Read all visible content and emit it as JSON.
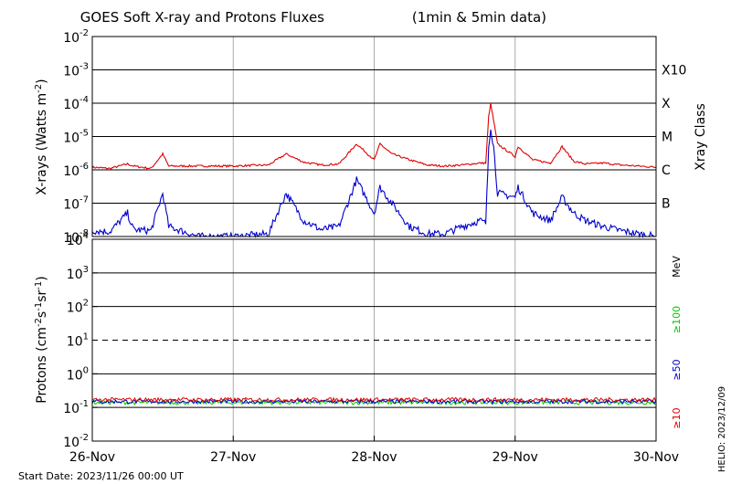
{
  "chart_data": [
    {
      "type": "line",
      "title": "GOES Soft X-ray and Protons Fluxes",
      "subtitle": "(1min & 5min data)",
      "ylabel": "X-rays (Watts m^-2)",
      "yscale": "log",
      "ylim": [
        1e-08,
        0.01
      ],
      "y_ticks": [
        "10^-8",
        "10^-7",
        "10^-6",
        "10^-5",
        "10^-4",
        "10^-3",
        "10^-2"
      ],
      "right_axis_title": "Xray Class",
      "classes": [
        {
          "label": "B",
          "value": 1e-07
        },
        {
          "label": "C",
          "value": 1e-06
        },
        {
          "label": "M",
          "value": 1e-05
        },
        {
          "label": "X",
          "value": 0.0001
        },
        {
          "label": "X10",
          "value": 0.001
        }
      ],
      "xlim": [
        "2023-11-26 00:00",
        "2023-11-30 00:00"
      ],
      "series": [
        {
          "color": "#dd0000",
          "points": [
            [
              "2023-11-26 00:00",
              1.2e-06
            ],
            [
              "2023-11-26 03:00",
              1.1e-06
            ],
            [
              "2023-11-26 06:00",
              1.5e-06
            ],
            [
              "2023-11-26 07:00",
              1.3e-06
            ],
            [
              "2023-11-26 10:00",
              1.1e-06
            ],
            [
              "2023-11-26 12:00",
              3e-06
            ],
            [
              "2023-11-26 13:00",
              1.3e-06
            ],
            [
              "2023-11-26 18:00",
              1.3e-06
            ],
            [
              "2023-11-27 00:00",
              1.3e-06
            ],
            [
              "2023-11-27 06:00",
              1.4e-06
            ],
            [
              "2023-11-27 09:00",
              3e-06
            ],
            [
              "2023-11-27 12:00",
              1.7e-06
            ],
            [
              "2023-11-27 15:00",
              1.4e-06
            ],
            [
              "2023-11-27 18:00",
              1.5e-06
            ],
            [
              "2023-11-27 21:00",
              6e-06
            ],
            [
              "2023-11-28 00:00",
              2e-06
            ],
            [
              "2023-11-28 01:00",
              6e-06
            ],
            [
              "2023-11-28 03:00",
              3e-06
            ],
            [
              "2023-11-28 06:00",
              2e-06
            ],
            [
              "2023-11-28 09:00",
              1.4e-06
            ],
            [
              "2023-11-28 12:00",
              1.3e-06
            ],
            [
              "2023-11-28 15:00",
              1.4e-06
            ],
            [
              "2023-11-28 18:00",
              1.6e-06
            ],
            [
              "2023-11-28 19:00",
              1.6e-06
            ],
            [
              "2023-11-28 19:30",
              4e-05
            ],
            [
              "2023-11-28 19:50",
              9.8e-05
            ],
            [
              "2023-11-28 20:20",
              3e-05
            ],
            [
              "2023-11-28 21:00",
              6e-06
            ],
            [
              "2023-11-29 00:00",
              2.5e-06
            ],
            [
              "2023-11-29 00:30",
              5e-06
            ],
            [
              "2023-11-29 03:00",
              2e-06
            ],
            [
              "2023-11-29 06:00",
              1.6e-06
            ],
            [
              "2023-11-29 08:00",
              5e-06
            ],
            [
              "2023-11-29 10:00",
              1.8e-06
            ],
            [
              "2023-11-29 12:00",
              1.5e-06
            ],
            [
              "2023-11-29 15:00",
              1.6e-06
            ],
            [
              "2023-11-29 18:00",
              1.4e-06
            ],
            [
              "2023-11-29 21:00",
              1.3e-06
            ],
            [
              "2023-11-30 00:00",
              1.2e-06
            ]
          ]
        },
        {
          "color": "#0000cc",
          "points": [
            [
              "2023-11-26 00:00",
              1.5e-08
            ],
            [
              "2023-11-26 03:00",
              1.4e-08
            ],
            [
              "2023-11-26 06:00",
              5e-08
            ],
            [
              "2023-11-26 07:00",
              1.6e-08
            ],
            [
              "2023-11-26 10:00",
              1.5e-08
            ],
            [
              "2023-11-26 12:00",
              2e-07
            ],
            [
              "2023-11-26 13:00",
              2e-08
            ],
            [
              "2023-11-26 18:00",
              1e-08
            ],
            [
              "2023-11-27 00:00",
              1e-08
            ],
            [
              "2023-11-27 06:00",
              1.2e-08
            ],
            [
              "2023-11-27 09:00",
              2e-07
            ],
            [
              "2023-11-27 12:00",
              3e-08
            ],
            [
              "2023-11-27 15:00",
              1.6e-08
            ],
            [
              "2023-11-27 18:00",
              2e-08
            ],
            [
              "2023-11-27 21:00",
              5e-07
            ],
            [
              "2023-11-28 00:00",
              5e-08
            ],
            [
              "2023-11-28 01:00",
              3e-07
            ],
            [
              "2023-11-28 03:00",
              1e-07
            ],
            [
              "2023-11-28 06:00",
              2e-08
            ],
            [
              "2023-11-28 09:00",
              1.2e-08
            ],
            [
              "2023-11-28 12:00",
              1.2e-08
            ],
            [
              "2023-11-28 15:00",
              2e-08
            ],
            [
              "2023-11-28 18:00",
              3e-08
            ],
            [
              "2023-11-28 19:00",
              2.5e-08
            ],
            [
              "2023-11-28 19:30",
              5e-06
            ],
            [
              "2023-11-28 19:50",
              2e-05
            ],
            [
              "2023-11-28 20:20",
              5e-06
            ],
            [
              "2023-11-28 21:00",
              2e-07
            ],
            [
              "2023-11-29 00:00",
              1.5e-07
            ],
            [
              "2023-11-29 00:30",
              3e-07
            ],
            [
              "2023-11-29 03:00",
              5e-08
            ],
            [
              "2023-11-29 06:00",
              3e-08
            ],
            [
              "2023-11-29 08:00",
              1.5e-07
            ],
            [
              "2023-11-29 10:00",
              5e-08
            ],
            [
              "2023-11-29 12:00",
              3e-08
            ],
            [
              "2023-11-29 15:00",
              2e-08
            ],
            [
              "2023-11-29 18:00",
              1.5e-08
            ],
            [
              "2023-11-29 21:00",
              1.2e-08
            ],
            [
              "2023-11-30 00:00",
              1e-08
            ]
          ]
        }
      ]
    },
    {
      "type": "line",
      "ylabel": "Protons (cm^-2 s^-1 sr^-1)",
      "yscale": "log",
      "ylim": [
        0.01,
        10000
      ],
      "y_ticks": [
        "10^-2",
        "10^-1",
        "10^0",
        "10^1",
        "10^2",
        "10^3",
        "10^4"
      ],
      "threshold": {
        "value": 10,
        "style": "dashed"
      },
      "right_unit": "MeV",
      "xlim": [
        "2023-11-26 00:00",
        "2023-11-30 00:00"
      ],
      "x_ticks": [
        "26-Nov",
        "27-Nov",
        "28-Nov",
        "29-Nov",
        "30-Nov"
      ],
      "series": [
        {
          "name": "≥10",
          "color": "#dd0000",
          "level": 0.17
        },
        {
          "name": "≥50",
          "color": "#0000cc",
          "level": 0.15
        },
        {
          "name": "≥100",
          "color": "#00cc00",
          "level": 0.14
        }
      ]
    }
  ],
  "footer": {
    "start_date": "Start Date: 2023/11/26 00:00 UT",
    "helio": "HELIO: 2023/12/09"
  },
  "colors": {
    "grid": "#000000",
    "day_lines": "#aaaaaa"
  }
}
